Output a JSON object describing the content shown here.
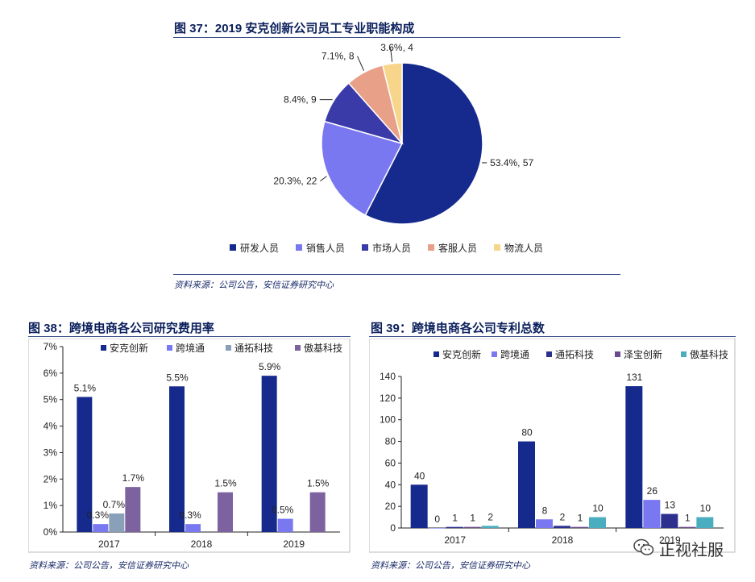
{
  "fig37": {
    "title": "图 37：2019 安克创新公司员工专业职能构成",
    "source": "资料来源：公司公告，安信证券研究中心"
  },
  "fig38": {
    "title": "图 38：跨境电商各公司研究费用率",
    "source": "资料来源：公司公告，安信证券研究中心"
  },
  "fig39": {
    "title": "图 39：跨境电商各公司专利总数",
    "source": "资料来源：公司公告，安信证券研究中心"
  },
  "watermark": {
    "text": "正视社服"
  },
  "chart_data": [
    {
      "type": "pie",
      "title": "图 37：2019 安克创新公司员工专业职能构成",
      "legend_position": "bottom",
      "slices": [
        {
          "name": "研发人员",
          "percent": 53.4,
          "value": 57,
          "label": "53.4%, 57",
          "color": "#152a8c"
        },
        {
          "name": "销售人员",
          "percent": 20.3,
          "value": 22,
          "label": "20.3%, 22",
          "color": "#7a78f0"
        },
        {
          "name": "市场人员",
          "percent": 8.4,
          "value": 9,
          "label": "8.4%, 9",
          "color": "#3a3aa8"
        },
        {
          "name": "客服人员",
          "percent": 7.1,
          "value": 8,
          "label": "7.1%, 8",
          "color": "#e8a088"
        },
        {
          "name": "物流人员",
          "percent": 3.6,
          "value": 4,
          "label": "3.6%, 4",
          "color": "#f7d58a"
        }
      ]
    },
    {
      "type": "bar",
      "title": "图 38：跨境电商各公司研究费用率",
      "categories": [
        "2017",
        "2018",
        "2019"
      ],
      "yticks": [
        "0%",
        "1%",
        "2%",
        "3%",
        "4%",
        "5%",
        "6%",
        "7%"
      ],
      "ylim": [
        0,
        7
      ],
      "legend_position": "top",
      "grid": false,
      "series": [
        {
          "name": "安克创新",
          "color": "#152a8c",
          "values": [
            5.1,
            5.5,
            5.9
          ],
          "labels": [
            "5.1%",
            "5.5%",
            "5.9%"
          ]
        },
        {
          "name": "跨境通",
          "color": "#7a78f0",
          "values": [
            0.3,
            0.3,
            0.5
          ],
          "labels": [
            "0.3%",
            "0.3%",
            "0.5%"
          ]
        },
        {
          "name": "通拓科技",
          "color": "#8aa0b8",
          "values": [
            0.7,
            null,
            null
          ],
          "labels": [
            "0.7%",
            "",
            ""
          ]
        },
        {
          "name": "傲基科技",
          "color": "#7d62a0",
          "values": [
            1.7,
            1.5,
            1.5
          ],
          "labels": [
            "1.7%",
            "1.5%",
            "1.5%"
          ]
        }
      ]
    },
    {
      "type": "bar",
      "title": "图 39：跨境电商各公司专利总数",
      "categories": [
        "2017",
        "2018",
        "2019"
      ],
      "yticks": [
        "0",
        "20",
        "40",
        "60",
        "80",
        "100",
        "120",
        "140"
      ],
      "ylim": [
        0,
        140
      ],
      "legend_position": "top",
      "grid": false,
      "series": [
        {
          "name": "安克创新",
          "color": "#152a8c",
          "values": [
            40,
            80,
            131
          ]
        },
        {
          "name": "跨境通",
          "color": "#7a78f0",
          "values": [
            0,
            8,
            26
          ]
        },
        {
          "name": "通拓科技",
          "color": "#2d2f8f",
          "values": [
            1,
            2,
            13
          ]
        },
        {
          "name": "泽宝创新",
          "color": "#6a4a8a",
          "values": [
            1,
            1,
            1
          ]
        },
        {
          "name": "傲基科技",
          "color": "#4aaec0",
          "values": [
            2,
            10,
            10
          ]
        }
      ]
    }
  ]
}
